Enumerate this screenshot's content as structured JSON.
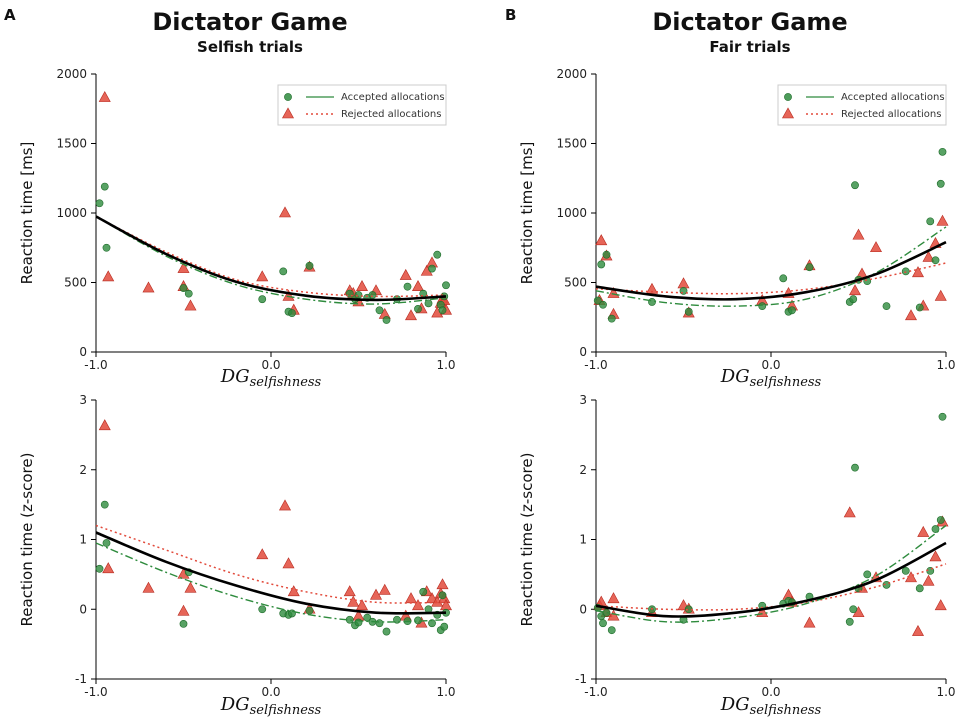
{
  "chart_data": [
    {
      "type": "scatter",
      "panel_label": "A",
      "title": "Dictator Game",
      "subtitle": "Selfish trials",
      "ylabel": "Reaction time [ms]",
      "xlabel_main": "DG",
      "xlabel_sub": "selfishness",
      "xlim": [
        -1.0,
        1.0
      ],
      "ylim": [
        0,
        2000
      ],
      "xticks": [
        "-1.0",
        "0.0",
        "1.0"
      ],
      "yticks": [
        "0",
        "500",
        "1000",
        "1500",
        "2000"
      ],
      "legend": {
        "placement": "top-right",
        "accepted": "Accepted allocations",
        "rejected": "Rejected allocations"
      },
      "accepted_points": [
        [
          -0.98,
          1070
        ],
        [
          -0.95,
          1190
        ],
        [
          -0.94,
          750
        ],
        [
          -0.5,
          460
        ],
        [
          -0.47,
          420
        ],
        [
          -0.05,
          380
        ],
        [
          0.07,
          580
        ],
        [
          0.1,
          290
        ],
        [
          0.12,
          280
        ],
        [
          0.22,
          620
        ],
        [
          0.45,
          420
        ],
        [
          0.48,
          380
        ],
        [
          0.5,
          410
        ],
        [
          0.55,
          390
        ],
        [
          0.58,
          410
        ],
        [
          0.62,
          300
        ],
        [
          0.66,
          230
        ],
        [
          0.72,
          380
        ],
        [
          0.78,
          470
        ],
        [
          0.84,
          310
        ],
        [
          0.87,
          420
        ],
        [
          0.9,
          350
        ],
        [
          0.92,
          600
        ],
        [
          0.95,
          700
        ],
        [
          0.97,
          340
        ],
        [
          0.98,
          300
        ],
        [
          0.99,
          400
        ],
        [
          1.0,
          480
        ]
      ],
      "rejected_points": [
        [
          -0.95,
          1830
        ],
        [
          -0.93,
          540
        ],
        [
          -0.7,
          460
        ],
        [
          -0.5,
          600
        ],
        [
          -0.5,
          470
        ],
        [
          -0.46,
          330
        ],
        [
          -0.05,
          540
        ],
        [
          0.08,
          1000
        ],
        [
          0.1,
          400
        ],
        [
          0.13,
          300
        ],
        [
          0.22,
          610
        ],
        [
          0.45,
          440
        ],
        [
          0.47,
          420
        ],
        [
          0.5,
          360
        ],
        [
          0.52,
          470
        ],
        [
          0.6,
          440
        ],
        [
          0.65,
          270
        ],
        [
          0.77,
          550
        ],
        [
          0.8,
          260
        ],
        [
          0.84,
          470
        ],
        [
          0.86,
          310
        ],
        [
          0.89,
          580
        ],
        [
          0.92,
          640
        ],
        [
          0.95,
          280
        ],
        [
          0.97,
          350
        ],
        [
          0.98,
          380
        ],
        [
          0.99,
          370
        ],
        [
          1.0,
          300
        ]
      ],
      "fit_overall": [
        [
          -1.0,
          975
        ],
        [
          -0.6,
          705
        ],
        [
          -0.2,
          505
        ],
        [
          0.2,
          405
        ],
        [
          0.6,
          375
        ],
        [
          1.0,
          400
        ]
      ],
      "fit_accepted": [
        [
          -1.0,
          975
        ],
        [
          -0.6,
          690
        ],
        [
          -0.2,
          485
        ],
        [
          0.2,
          380
        ],
        [
          0.6,
          345
        ],
        [
          1.0,
          390
        ]
      ],
      "fit_rejected": [
        [
          -1.0,
          975
        ],
        [
          -0.6,
          720
        ],
        [
          -0.2,
          520
        ],
        [
          0.2,
          430
        ],
        [
          0.6,
          400
        ],
        [
          1.0,
          410
        ]
      ]
    },
    {
      "type": "scatter",
      "panel_label": "B",
      "title": "Dictator Game",
      "subtitle": "Fair trials",
      "ylabel": "Reaction time [ms]",
      "xlabel_main": "DG",
      "xlabel_sub": "selfishness",
      "xlim": [
        -1.0,
        1.0
      ],
      "ylim": [
        0,
        2000
      ],
      "xticks": [
        "-1.0",
        "0.0",
        "1.0"
      ],
      "yticks": [
        "0",
        "500",
        "1000",
        "1500",
        "2000"
      ],
      "legend": {
        "placement": "top-right",
        "accepted": "Accepted allocations",
        "rejected": "Rejected allocations"
      },
      "accepted_points": [
        [
          -0.99,
          370
        ],
        [
          -0.97,
          630
        ],
        [
          -0.96,
          340
        ],
        [
          -0.94,
          700
        ],
        [
          -0.91,
          240
        ],
        [
          -0.68,
          360
        ],
        [
          -0.5,
          440
        ],
        [
          -0.47,
          290
        ],
        [
          -0.05,
          330
        ],
        [
          0.07,
          530
        ],
        [
          0.1,
          290
        ],
        [
          0.12,
          300
        ],
        [
          0.22,
          610
        ],
        [
          0.45,
          360
        ],
        [
          0.47,
          380
        ],
        [
          0.48,
          1200
        ],
        [
          0.5,
          520
        ],
        [
          0.55,
          510
        ],
        [
          0.66,
          330
        ],
        [
          0.77,
          580
        ],
        [
          0.85,
          320
        ],
        [
          0.91,
          940
        ],
        [
          0.94,
          660
        ],
        [
          0.97,
          1210
        ],
        [
          0.98,
          1440
        ]
      ],
      "rejected_points": [
        [
          -0.98,
          370
        ],
        [
          -0.97,
          800
        ],
        [
          -0.94,
          690
        ],
        [
          -0.9,
          420
        ],
        [
          -0.9,
          270
        ],
        [
          -0.68,
          450
        ],
        [
          -0.5,
          490
        ],
        [
          -0.47,
          280
        ],
        [
          -0.05,
          370
        ],
        [
          0.1,
          420
        ],
        [
          0.12,
          330
        ],
        [
          0.22,
          620
        ],
        [
          0.48,
          440
        ],
        [
          0.5,
          840
        ],
        [
          0.52,
          560
        ],
        [
          0.6,
          750
        ],
        [
          0.8,
          260
        ],
        [
          0.84,
          570
        ],
        [
          0.87,
          330
        ],
        [
          0.9,
          680
        ],
        [
          0.94,
          780
        ],
        [
          0.97,
          400
        ],
        [
          0.98,
          940
        ]
      ],
      "fit_overall": [
        [
          -1.0,
          470
        ],
        [
          -0.6,
          400
        ],
        [
          -0.2,
          380
        ],
        [
          0.2,
          430
        ],
        [
          0.6,
          560
        ],
        [
          1.0,
          790
        ]
      ],
      "fit_accepted": [
        [
          -1.0,
          440
        ],
        [
          -0.6,
          355
        ],
        [
          -0.2,
          330
        ],
        [
          0.2,
          380
        ],
        [
          0.6,
          570
        ],
        [
          1.0,
          900
        ]
      ],
      "fit_rejected": [
        [
          -1.0,
          455
        ],
        [
          -0.6,
          430
        ],
        [
          -0.2,
          420
        ],
        [
          0.2,
          450
        ],
        [
          0.6,
          530
        ],
        [
          1.0,
          640
        ]
      ]
    },
    {
      "type": "scatter",
      "panel_label": "",
      "title": "",
      "subtitle": "",
      "ylabel": "Reaction time (z-score)",
      "xlabel_main": "DG",
      "xlabel_sub": "selfishness",
      "xlim": [
        -1.0,
        1.0
      ],
      "ylim": [
        -1,
        3
      ],
      "xticks": [
        "-1.0",
        "0.0",
        "1.0"
      ],
      "yticks": [
        "-1",
        "0",
        "1",
        "2",
        "3"
      ],
      "legend": null,
      "accepted_points": [
        [
          -0.98,
          0.58
        ],
        [
          -0.95,
          1.5
        ],
        [
          -0.94,
          0.95
        ],
        [
          -0.5,
          -0.21
        ],
        [
          -0.47,
          0.53
        ],
        [
          -0.05,
          0.0
        ],
        [
          0.07,
          -0.06
        ],
        [
          0.1,
          -0.08
        ],
        [
          0.12,
          -0.06
        ],
        [
          0.22,
          -0.02
        ],
        [
          0.45,
          -0.15
        ],
        [
          0.48,
          -0.23
        ],
        [
          0.5,
          -0.19
        ],
        [
          0.55,
          -0.12
        ],
        [
          0.58,
          -0.18
        ],
        [
          0.62,
          -0.2
        ],
        [
          0.66,
          -0.32
        ],
        [
          0.72,
          -0.15
        ],
        [
          0.78,
          -0.17
        ],
        [
          0.84,
          -0.16
        ],
        [
          0.87,
          0.25
        ],
        [
          0.9,
          0.0
        ],
        [
          0.92,
          -0.2
        ],
        [
          0.95,
          -0.08
        ],
        [
          0.97,
          -0.3
        ],
        [
          0.98,
          0.2
        ],
        [
          0.99,
          -0.25
        ],
        [
          1.0,
          -0.05
        ]
      ],
      "rejected_points": [
        [
          -0.95,
          2.63
        ],
        [
          -0.93,
          0.58
        ],
        [
          -0.7,
          0.3
        ],
        [
          -0.5,
          0.5
        ],
        [
          -0.5,
          -0.03
        ],
        [
          -0.46,
          0.3
        ],
        [
          -0.05,
          0.78
        ],
        [
          0.08,
          1.48
        ],
        [
          0.1,
          0.65
        ],
        [
          0.13,
          0.25
        ],
        [
          0.22,
          0.0
        ],
        [
          0.45,
          0.25
        ],
        [
          0.47,
          0.1
        ],
        [
          0.5,
          -0.1
        ],
        [
          0.52,
          0.05
        ],
        [
          0.6,
          0.2
        ],
        [
          0.65,
          0.27
        ],
        [
          0.77,
          -0.1
        ],
        [
          0.8,
          0.15
        ],
        [
          0.84,
          0.05
        ],
        [
          0.86,
          -0.2
        ],
        [
          0.89,
          0.25
        ],
        [
          0.92,
          0.15
        ],
        [
          0.95,
          0.1
        ],
        [
          0.97,
          0.22
        ],
        [
          0.98,
          0.35
        ],
        [
          0.99,
          0.15
        ],
        [
          1.0,
          0.05
        ]
      ],
      "fit_overall": [
        [
          -1.0,
          1.1
        ],
        [
          -0.6,
          0.68
        ],
        [
          -0.2,
          0.34
        ],
        [
          0.2,
          0.08
        ],
        [
          0.6,
          -0.05
        ],
        [
          1.0,
          -0.05
        ]
      ],
      "fit_accepted": [
        [
          -1.0,
          0.95
        ],
        [
          -0.6,
          0.53
        ],
        [
          -0.2,
          0.18
        ],
        [
          0.2,
          -0.07
        ],
        [
          0.6,
          -0.18
        ],
        [
          1.0,
          -0.15
        ]
      ],
      "fit_rejected": [
        [
          -1.0,
          1.2
        ],
        [
          -0.6,
          0.85
        ],
        [
          -0.2,
          0.5
        ],
        [
          0.2,
          0.25
        ],
        [
          0.6,
          0.1
        ],
        [
          1.0,
          0.1
        ]
      ]
    },
    {
      "type": "scatter",
      "panel_label": "",
      "title": "",
      "subtitle": "",
      "ylabel": "Reaction time (z-score)",
      "xlabel_main": "DG",
      "xlabel_sub": "selfishness",
      "xlim": [
        -1.0,
        1.0
      ],
      "ylim": [
        -1,
        3
      ],
      "xticks": [
        "-1.0",
        "0.0",
        "1.0"
      ],
      "yticks": [
        "-1",
        "0",
        "1",
        "2",
        "3"
      ],
      "legend": null,
      "accepted_points": [
        [
          -0.99,
          0.02
        ],
        [
          -0.97,
          -0.1
        ],
        [
          -0.96,
          -0.2
        ],
        [
          -0.94,
          -0.05
        ],
        [
          -0.91,
          -0.3
        ],
        [
          -0.68,
          0.0
        ],
        [
          -0.5,
          -0.15
        ],
        [
          -0.47,
          0.0
        ],
        [
          -0.05,
          0.05
        ],
        [
          0.07,
          0.08
        ],
        [
          0.1,
          0.12
        ],
        [
          0.12,
          0.1
        ],
        [
          0.22,
          0.18
        ],
        [
          0.45,
          -0.18
        ],
        [
          0.47,
          0.0
        ],
        [
          0.48,
          2.03
        ],
        [
          0.5,
          0.3
        ],
        [
          0.55,
          0.5
        ],
        [
          0.66,
          0.35
        ],
        [
          0.77,
          0.55
        ],
        [
          0.85,
          0.3
        ],
        [
          0.91,
          0.55
        ],
        [
          0.94,
          1.15
        ],
        [
          0.97,
          1.28
        ],
        [
          0.98,
          2.76
        ]
      ],
      "rejected_points": [
        [
          -0.98,
          0.05
        ],
        [
          -0.97,
          0.1
        ],
        [
          -0.94,
          -0.05
        ],
        [
          -0.9,
          0.15
        ],
        [
          -0.9,
          -0.1
        ],
        [
          -0.68,
          -0.05
        ],
        [
          -0.5,
          0.05
        ],
        [
          -0.47,
          0.0
        ],
        [
          -0.05,
          -0.05
        ],
        [
          0.1,
          0.2
        ],
        [
          0.12,
          0.1
        ],
        [
          0.22,
          -0.2
        ],
        [
          0.45,
          1.38
        ],
        [
          0.5,
          -0.05
        ],
        [
          0.52,
          0.3
        ],
        [
          0.6,
          0.45
        ],
        [
          0.8,
          0.45
        ],
        [
          0.84,
          -0.32
        ],
        [
          0.87,
          1.1
        ],
        [
          0.9,
          0.4
        ],
        [
          0.94,
          0.75
        ],
        [
          0.97,
          0.05
        ],
        [
          0.98,
          1.25
        ]
      ],
      "fit_overall": [
        [
          -1.0,
          0.05
        ],
        [
          -0.6,
          -0.1
        ],
        [
          -0.2,
          -0.05
        ],
        [
          0.2,
          0.12
        ],
        [
          0.6,
          0.42
        ],
        [
          1.0,
          0.95
        ]
      ],
      "fit_accepted": [
        [
          -1.0,
          -0.02
        ],
        [
          -0.6,
          -0.18
        ],
        [
          -0.2,
          -0.12
        ],
        [
          0.2,
          0.08
        ],
        [
          0.6,
          0.48
        ],
        [
          1.0,
          1.2
        ]
      ],
      "fit_rejected": [
        [
          -1.0,
          0.05
        ],
        [
          -0.6,
          0.0
        ],
        [
          -0.2,
          0.0
        ],
        [
          0.2,
          0.1
        ],
        [
          0.6,
          0.32
        ],
        [
          1.0,
          0.65
        ]
      ]
    }
  ],
  "colors": {
    "accepted": "#2e8b3d",
    "accepted_edge": "#1e6b2a",
    "rejected": "#e24a3b",
    "rejected_edge": "#b82b20",
    "overall_fit": "#000000"
  }
}
